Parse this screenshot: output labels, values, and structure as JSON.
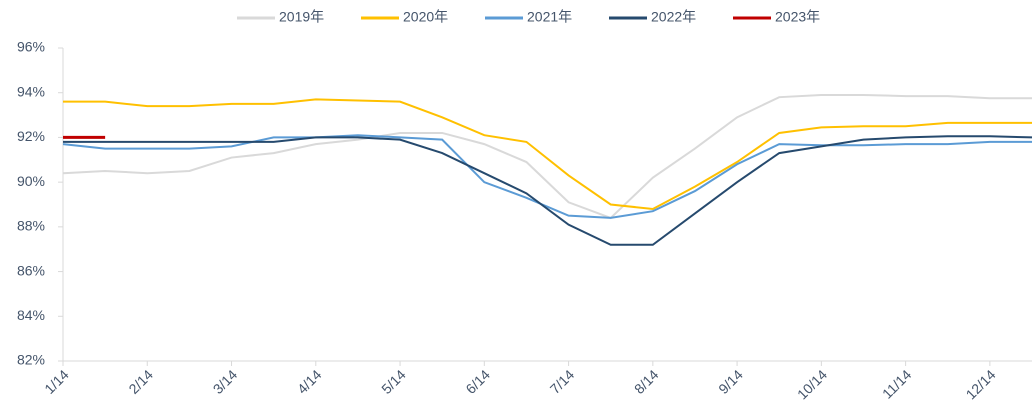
{
  "chart_data": {
    "type": "line",
    "categories": [
      "1/14",
      null,
      "2/14",
      null,
      "3/14",
      null,
      "4/14",
      null,
      "5/14",
      null,
      "6/14",
      null,
      "7/14",
      null,
      "8/14",
      null,
      "9/14",
      null,
      "10/14",
      null,
      "11/14",
      null,
      "12/14",
      null
    ],
    "series": [
      {
        "name": "2019年",
        "color": "#d9d9d9",
        "values": [
          90.4,
          90.5,
          90.4,
          90.5,
          91.1,
          91.3,
          91.7,
          91.9,
          92.2,
          92.2,
          91.7,
          90.9,
          89.1,
          88.4,
          90.2,
          91.5,
          92.9,
          93.8,
          93.9,
          93.9,
          93.85,
          93.85,
          93.75,
          93.75
        ]
      },
      {
        "name": "2020年",
        "color": "#ffc000",
        "values": [
          93.6,
          93.6,
          93.4,
          93.4,
          93.5,
          93.5,
          93.7,
          93.65,
          93.6,
          92.9,
          92.1,
          91.8,
          90.3,
          89.0,
          88.8,
          89.8,
          90.9,
          92.2,
          92.45,
          92.5,
          92.5,
          92.65,
          92.65,
          92.65
        ]
      },
      {
        "name": "2021年",
        "color": "#5b9bd5",
        "values": [
          91.7,
          91.5,
          91.5,
          91.5,
          91.6,
          92.0,
          92.0,
          92.1,
          92.0,
          91.9,
          90.0,
          89.3,
          88.5,
          88.4,
          88.7,
          89.6,
          90.8,
          91.7,
          91.65,
          91.65,
          91.7,
          91.7,
          91.8,
          91.8
        ]
      },
      {
        "name": "2022年",
        "color": "#264a6e",
        "values": [
          91.8,
          91.8,
          91.8,
          91.8,
          91.8,
          91.8,
          92.0,
          92.0,
          91.9,
          91.3,
          90.4,
          89.5,
          88.1,
          87.2,
          87.2,
          88.6,
          90.0,
          91.3,
          91.6,
          91.9,
          92.0,
          92.05,
          92.05,
          92.0
        ]
      },
      {
        "name": "2023年",
        "color": "#c00000",
        "values": [
          92.0,
          92.0,
          null,
          null,
          null,
          null,
          null,
          null,
          null,
          null,
          null,
          null,
          null,
          null,
          null,
          null,
          null,
          null,
          null,
          null,
          null,
          null,
          null,
          null
        ]
      }
    ],
    "ylim": [
      82,
      96
    ],
    "yticks": [
      {
        "value": 82,
        "label": "82%"
      },
      {
        "value": 84,
        "label": "84%"
      },
      {
        "value": 86,
        "label": "86%"
      },
      {
        "value": 88,
        "label": "88%"
      },
      {
        "value": 90,
        "label": "90%"
      },
      {
        "value": 92,
        "label": "92%"
      },
      {
        "value": 94,
        "label": "94%"
      },
      {
        "value": 96,
        "label": "96%"
      }
    ],
    "legend": "top",
    "grid": false
  }
}
